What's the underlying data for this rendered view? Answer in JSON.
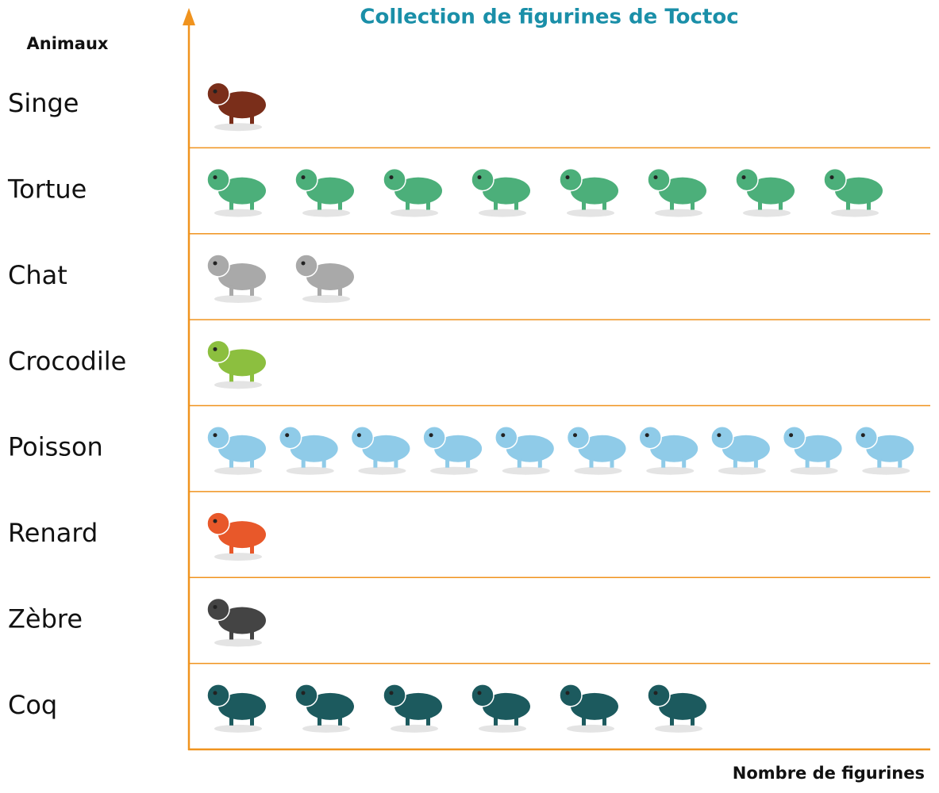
{
  "chart_data": {
    "type": "pictograph",
    "title": "Collection de figurines de Toctoc",
    "y_label": "Animaux",
    "x_label": "Nombre de figurines",
    "categories": [
      "Singe",
      "Tortue",
      "Chat",
      "Crocodile",
      "Poisson",
      "Renard",
      "Zèbre",
      "Coq"
    ],
    "values": [
      1,
      8,
      2,
      1,
      10,
      1,
      1,
      6
    ],
    "colors": [
      "#7a2e1a",
      "#4caf7a",
      "#a9a9a9",
      "#8cbf3f",
      "#8fcbe8",
      "#e8582a",
      "#444444",
      "#1c5a5e"
    ]
  }
}
